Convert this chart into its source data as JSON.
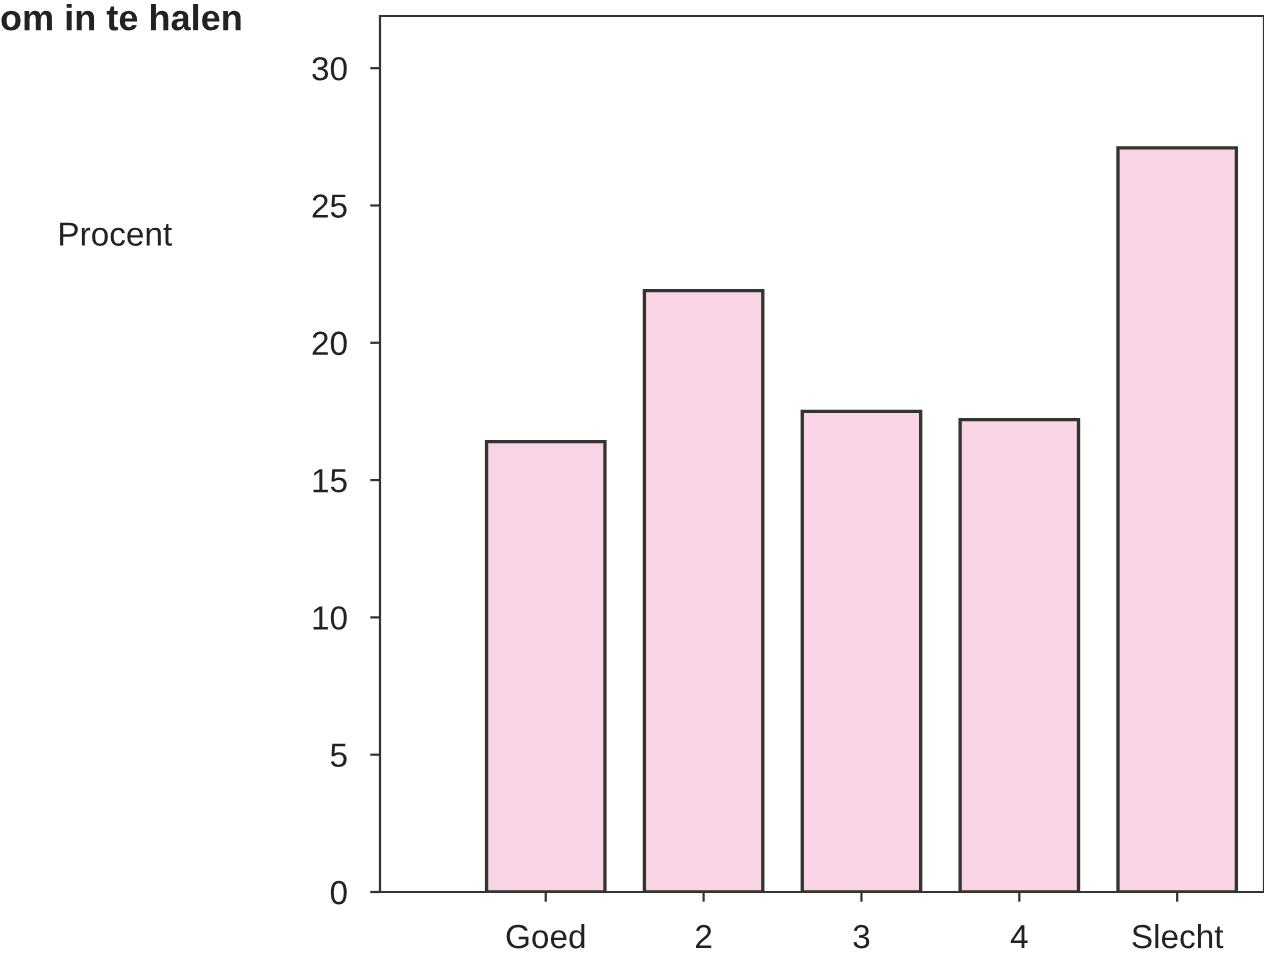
{
  "chart_data": {
    "type": "bar",
    "title": "om in te halen",
    "ylabel": "Procent",
    "categories": [
      "Goed",
      "2",
      "3",
      "4",
      "Slecht"
    ],
    "values": [
      16.4,
      21.9,
      17.5,
      17.2,
      27.1
    ],
    "color": "#f8d4e4",
    "ylim": [
      0,
      31.9
    ],
    "yticks": [
      0,
      5,
      10,
      15,
      20,
      25,
      30
    ],
    "grid": false
  }
}
